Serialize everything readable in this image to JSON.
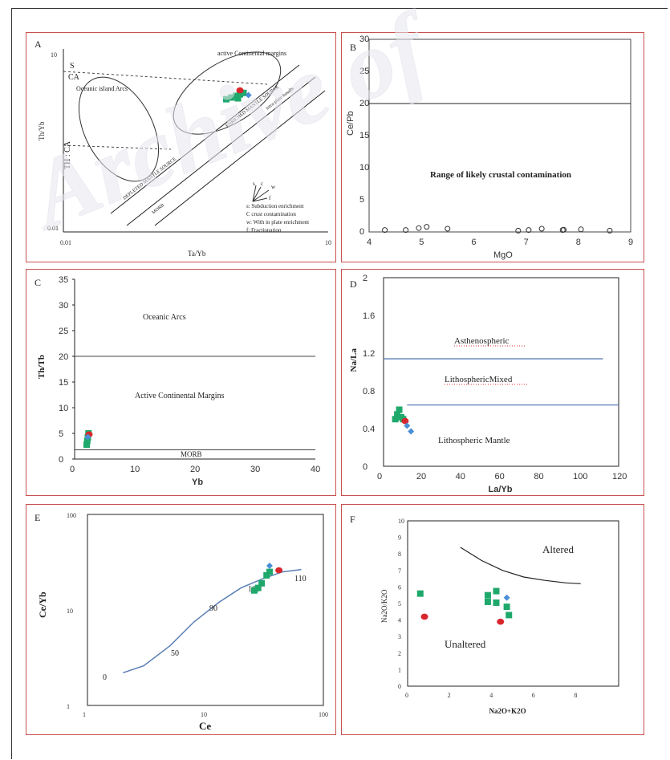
{
  "colors": {
    "green": "#1fa86b",
    "red": "#d7262c",
    "blue": "#4a8fd6",
    "navy": "#1f2a78",
    "border": "#c8504f",
    "line": "#5a7fb5"
  },
  "watermark": "Archive of",
  "chart_data": [
    {
      "panel": "A",
      "type": "scatter",
      "xlabel": "Ta/Yb",
      "ylabel": "Th/Yb",
      "xscale": "log",
      "yscale": "log",
      "xlim": [
        0.01,
        10
      ],
      "ylim": [
        0.01,
        10
      ],
      "x_ticks": [
        "0.01",
        "10"
      ],
      "y_ticks": [
        "10",
        "0.01"
      ],
      "annotations": {
        "s": "S",
        "ca": "CA",
        "th_ca": "TH : CA",
        "oia": "Oceanic island Arcs",
        "acm": "active Continental margins",
        "dms": "DEPLETED MANTLE SOURCE",
        "morb": "MORB",
        "ems": "ENRICHED MANTLE SOURCE",
        "ipb": "intra-plate basalts"
      },
      "legend_vectors": [
        "s",
        "c",
        "w",
        "f"
      ],
      "legend": [
        "s: Subduction enrichment",
        "C crust contamination",
        "w: With in plate enrichment",
        "f: Fractionation"
      ],
      "points": [
        {
          "x": 0.7,
          "y": 1.5,
          "s": "green"
        },
        {
          "x": 0.8,
          "y": 1.6,
          "s": "green"
        },
        {
          "x": 0.9,
          "y": 1.7,
          "s": "green"
        },
        {
          "x": 1.0,
          "y": 1.8,
          "s": "green"
        },
        {
          "x": 1.1,
          "y": 1.9,
          "s": "green"
        },
        {
          "x": 0.95,
          "y": 1.55,
          "s": "green"
        },
        {
          "x": 1.0,
          "y": 2.1,
          "s": "red"
        },
        {
          "x": 1.25,
          "y": 1.75,
          "s": "blue"
        }
      ]
    },
    {
      "panel": "B",
      "type": "scatter",
      "xlabel": "MgO",
      "ylabel": "Ce/Pb",
      "xlim": [
        4,
        9
      ],
      "ylim": [
        0,
        30
      ],
      "x_ticks": [
        4,
        5,
        6,
        7,
        8,
        9
      ],
      "y_ticks": [
        0,
        5,
        10,
        15,
        20,
        25,
        30
      ],
      "hline": 20,
      "annotation": "Range of likely crustal contamination",
      "points": [
        {
          "x": 4.3,
          "y": 0.3
        },
        {
          "x": 4.7,
          "y": 0.3
        },
        {
          "x": 4.95,
          "y": 0.6
        },
        {
          "x": 5.1,
          "y": 0.8
        },
        {
          "x": 5.5,
          "y": 0.5
        },
        {
          "x": 6.85,
          "y": 0.2
        },
        {
          "x": 7.05,
          "y": 0.3
        },
        {
          "x": 7.3,
          "y": 0.5
        },
        {
          "x": 7.7,
          "y": 0.3
        },
        {
          "x": 7.72,
          "y": 0.35
        },
        {
          "x": 8.05,
          "y": 0.4
        },
        {
          "x": 8.6,
          "y": 0.2
        }
      ]
    },
    {
      "panel": "C",
      "type": "scatter",
      "xlabel": "Yb",
      "ylabel": "Th/Tb",
      "xlim": [
        0,
        40
      ],
      "ylim": [
        0,
        35
      ],
      "x_ticks": [
        0,
        10,
        20,
        30,
        40
      ],
      "y_ticks": [
        0,
        5,
        10,
        15,
        20,
        25,
        30,
        35
      ],
      "hlines": [
        20,
        1.8
      ],
      "regions": [
        "Oceanic Arcs",
        "Active Continental  Margins",
        "MORB"
      ],
      "points": [
        {
          "x": 2.0,
          "y": 2.8,
          "s": "green"
        },
        {
          "x": 2.1,
          "y": 3.5,
          "s": "green"
        },
        {
          "x": 2.2,
          "y": 4.2,
          "s": "green"
        },
        {
          "x": 2.3,
          "y": 5.0,
          "s": "green"
        },
        {
          "x": 2.4,
          "y": 4.8,
          "s": "red"
        },
        {
          "x": 2.2,
          "y": 4.3,
          "s": "blue"
        }
      ]
    },
    {
      "panel": "D",
      "type": "scatter",
      "xlabel": "La/Yb",
      "ylabel": "Na/La",
      "xlim": [
        0,
        120
      ],
      "ylim": [
        0,
        2
      ],
      "x_ticks": [
        "0",
        "20",
        "40",
        "60",
        "80",
        "100",
        "120"
      ],
      "y_ticks": [
        "0",
        "0.4",
        "0.8",
        "1.2",
        "1.6",
        "2"
      ],
      "hlines": [
        {
          "y": 1.14,
          "x0": 0,
          "x1": 112
        },
        {
          "y": 0.65,
          "x0": 12,
          "x1": 120
        }
      ],
      "regions": [
        "Asthenospheric",
        "LithosphericMixed",
        "Lithospheric Mantle"
      ],
      "points": [
        {
          "x": 6,
          "y": 0.5,
          "s": "green"
        },
        {
          "x": 7,
          "y": 0.55,
          "s": "green"
        },
        {
          "x": 8,
          "y": 0.6,
          "s": "green"
        },
        {
          "x": 9,
          "y": 0.52,
          "s": "green"
        },
        {
          "x": 10,
          "y": 0.5,
          "s": "green"
        },
        {
          "x": 11,
          "y": 0.48,
          "s": "red"
        },
        {
          "x": 12,
          "y": 0.43,
          "s": "blue"
        },
        {
          "x": 14,
          "y": 0.37,
          "s": "blue"
        }
      ]
    },
    {
      "panel": "E",
      "type": "scatter",
      "xlabel": "Ce",
      "ylabel": "Ce/Yb",
      "xscale": "log",
      "yscale": "log",
      "xlim": [
        1,
        100
      ],
      "ylim": [
        1,
        100
      ],
      "x_ticks": [
        "1",
        "10",
        "100"
      ],
      "y_ticks": [
        "100",
        "10",
        "1"
      ],
      "curve": [
        {
          "x": 2,
          "y": 2.2
        },
        {
          "x": 3,
          "y": 2.6
        },
        {
          "x": 5,
          "y": 4.2
        },
        {
          "x": 8,
          "y": 7.5
        },
        {
          "x": 13,
          "y": 12
        },
        {
          "x": 20,
          "y": 17
        },
        {
          "x": 30,
          "y": 21
        },
        {
          "x": 45,
          "y": 25
        },
        {
          "x": 65,
          "y": 26.5
        }
      ],
      "curve_labels": [
        "0",
        "50",
        "90",
        "100",
        "110"
      ],
      "points": [
        {
          "x": 26,
          "y": 16,
          "s": "green"
        },
        {
          "x": 28,
          "y": 17,
          "s": "green"
        },
        {
          "x": 30,
          "y": 19,
          "s": "green"
        },
        {
          "x": 33,
          "y": 23,
          "s": "green"
        },
        {
          "x": 35,
          "y": 25,
          "s": "green"
        },
        {
          "x": 35,
          "y": 29,
          "s": "blue"
        },
        {
          "x": 42,
          "y": 26,
          "s": "red"
        }
      ]
    },
    {
      "panel": "F",
      "type": "scatter",
      "xlabel": "Na2O+K2O",
      "ylabel": "Na2O/K2O",
      "xlim": [
        0,
        10
      ],
      "ylim": [
        0,
        10
      ],
      "x_ticks": [
        0,
        2,
        4,
        6,
        8
      ],
      "y_ticks": [
        0,
        1,
        2,
        3,
        4,
        5,
        6,
        7,
        8,
        9,
        10
      ],
      "curve": [
        {
          "x": 2.5,
          "y": 8.4
        },
        {
          "x": 3.5,
          "y": 7.6
        },
        {
          "x": 4.5,
          "y": 7.0
        },
        {
          "x": 5.5,
          "y": 6.6
        },
        {
          "x": 6.5,
          "y": 6.4
        },
        {
          "x": 7.5,
          "y": 6.25
        },
        {
          "x": 8.2,
          "y": 6.2
        }
      ],
      "regions": [
        "Altered",
        "Unaltered"
      ],
      "points": [
        {
          "x": 0.6,
          "y": 5.6,
          "s": "green"
        },
        {
          "x": 3.8,
          "y": 5.5,
          "s": "green"
        },
        {
          "x": 3.8,
          "y": 5.1,
          "s": "green"
        },
        {
          "x": 4.2,
          "y": 5.75,
          "s": "green"
        },
        {
          "x": 4.2,
          "y": 5.05,
          "s": "green"
        },
        {
          "x": 4.7,
          "y": 4.8,
          "s": "green"
        },
        {
          "x": 4.8,
          "y": 4.3,
          "s": "green"
        },
        {
          "x": 4.7,
          "y": 5.35,
          "s": "blue"
        },
        {
          "x": 0.8,
          "y": 4.2,
          "s": "red"
        },
        {
          "x": 4.4,
          "y": 3.9,
          "s": "red"
        }
      ]
    }
  ]
}
